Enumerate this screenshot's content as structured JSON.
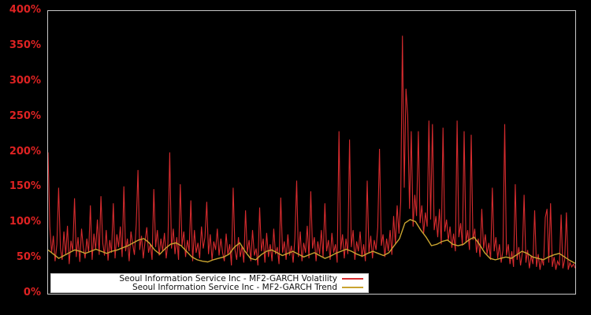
{
  "figure": {
    "background": "#000000",
    "plot_border_color": "#c8c8c8"
  },
  "y_axis": {
    "tick_labels": [
      "0%",
      "50%",
      "100%",
      "150%",
      "200%",
      "250%",
      "300%",
      "350%",
      "400%"
    ],
    "tick_values": [
      0,
      50,
      100,
      150,
      200,
      250,
      300,
      350,
      400
    ],
    "tick_color": "#dd2222"
  },
  "chart_data": {
    "type": "line",
    "title": "",
    "xlabel": "",
    "ylabel": "",
    "ylim": [
      0,
      400
    ],
    "y_unit": "%",
    "grid": false,
    "x_axis_labels_visible": false,
    "legend_position": "bottom-center",
    "background": "#000000",
    "series": [
      {
        "name": "Seoul Information Service Inc - MF2-GARCH Volatility",
        "color": "#d62b2e",
        "values": [
          200,
          95,
          58,
          82,
          46,
          70,
          150,
          64,
          48,
          88,
          55,
          96,
          42,
          75,
          60,
          135,
          52,
          80,
          45,
          92,
          65,
          50,
          78,
          58,
          125,
          48,
          85,
          62,
          105,
          55,
          138,
          72,
          54,
          90,
          47,
          76,
          58,
          128,
          50,
          84,
          66,
          95,
          52,
          152,
          60,
          78,
          46,
          88,
          70,
          55,
          98,
          175,
          62,
          82,
          50,
          74,
          94,
          58,
          70,
          48,
          148,
          66,
          90,
          54,
          78,
          60,
          86,
          50,
          72,
          200,
          64,
          92,
          56,
          80,
          48,
          155,
          68,
          88,
          52,
          76,
          60,
          132,
          46,
          90,
          58,
          72,
          50,
          95,
          64,
          80,
          130,
          56,
          84,
          48,
          74,
          62,
          92,
          54,
          78,
          58,
          46,
          85,
          55,
          70,
          40,
          150,
          62,
          48,
          80,
          52,
          68,
          44,
          118,
          58,
          76,
          46,
          90,
          54,
          64,
          40,
          122,
          60,
          78,
          44,
          86,
          52,
          70,
          46,
          92,
          56,
          66,
          42,
          136,
          58,
          74,
          48,
          84,
          54,
          68,
          44,
          78,
          160,
          52,
          88,
          46,
          72,
          58,
          96,
          50,
          145,
          64,
          80,
          46,
          74,
          56,
          90,
          52,
          128,
          60,
          76,
          48,
          86,
          58,
          70,
          44,
          230,
          62,
          84,
          50,
          78,
          56,
          218,
          66,
          90,
          48,
          74,
          60,
          88,
          52,
          70,
          46,
          160,
          58,
          82,
          50,
          76,
          62,
          94,
          205,
          68,
          84,
          52,
          78,
          60,
          90,
          55,
          110,
          70,
          125,
          85,
          130,
          365,
          150,
          290,
          252,
          120,
          230,
          95,
          140,
          110,
          230,
          100,
          125,
          85,
          115,
          95,
          245,
          105,
          240,
          90,
          110,
          80,
          120,
          70,
          235,
          88,
          105,
          75,
          95,
          65,
          85,
          60,
          245,
          80,
          100,
          68,
          230,
          72,
          90,
          62,
          225,
          76,
          92,
          58,
          78,
          52,
          120,
          64,
          84,
          56,
          72,
          48,
          150,
          60,
          80,
          50,
          70,
          44,
          62,
          240,
          54,
          70,
          42,
          60,
          38,
          155,
          48,
          66,
          40,
          58,
          140,
          44,
          62,
          36,
          54,
          42,
          118,
          38,
          56,
          34,
          50,
          40,
          108,
          120,
          44,
          128,
          38,
          52,
          34,
          46,
          40,
          112,
          36,
          48,
          115,
          34,
          44,
          38,
          42,
          36
        ]
      },
      {
        "name": "Seoul Information Service Inc - MF2-GARCH Trend",
        "color": "#c9a430",
        "values": [
          62,
          56,
          50,
          54,
          58,
          62,
          60,
          57,
          60,
          63,
          60,
          57,
          60,
          62,
          65,
          68,
          72,
          76,
          78,
          72,
          62,
          56,
          64,
          70,
          72,
          68,
          60,
          52,
          48,
          46,
          45,
          48,
          50,
          52,
          56,
          66,
          72,
          60,
          50,
          48,
          55,
          60,
          62,
          58,
          54,
          57,
          60,
          56,
          52,
          55,
          58,
          54,
          50,
          53,
          57,
          60,
          63,
          60,
          56,
          53,
          57,
          60,
          57,
          54,
          58,
          68,
          78,
          100,
          105,
          102,
          90,
          80,
          68,
          70,
          74,
          76,
          70,
          68,
          70,
          76,
          80,
          70,
          58,
          50,
          48,
          50,
          52,
          50,
          55,
          60,
          57,
          52,
          50,
          48,
          52,
          55,
          57,
          52,
          47,
          43
        ]
      }
    ]
  }
}
